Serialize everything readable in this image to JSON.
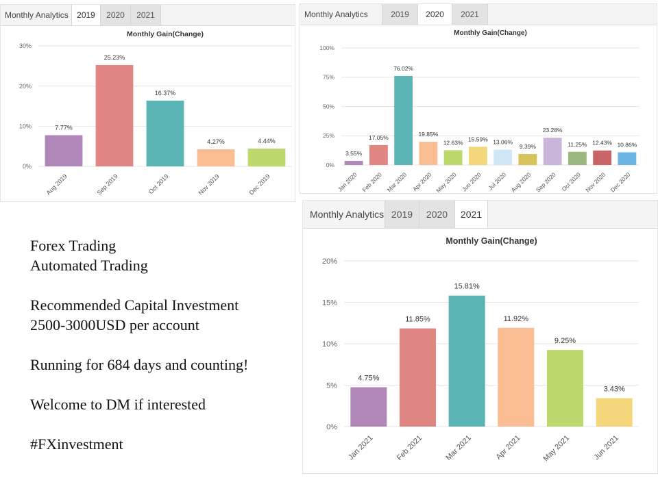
{
  "panels": [
    {
      "id": "p2019",
      "tabs": {
        "title": "Monthly Analytics",
        "years": [
          "2019",
          "2020",
          "2021"
        ],
        "active": "2019"
      },
      "chart_data": {
        "type": "bar",
        "title": "Monthly Gain(Change)",
        "categories": [
          "Aug 2019",
          "Sep 2019",
          "Oct 2019",
          "Nov 2019",
          "Dec 2019"
        ],
        "values": [
          7.77,
          25.23,
          16.37,
          4.27,
          4.44
        ],
        "value_labels": [
          "7.77%",
          "25.23%",
          "16.37%",
          "4.27%",
          "4.44%"
        ],
        "colors": [
          "#b186b8",
          "#e08682",
          "#5ab5b4",
          "#fbbd94",
          "#bdd96d"
        ],
        "yticks": [
          0,
          10,
          20,
          30
        ],
        "ytick_labels": [
          "0%",
          "10%",
          "20%",
          "30%"
        ],
        "ylim": [
          0,
          30
        ],
        "grid": true,
        "xlabel": "",
        "ylabel": ""
      }
    },
    {
      "id": "p2020",
      "tabs": {
        "title": "Monthly Analytics",
        "years": [
          "2019",
          "2020",
          "2021"
        ],
        "active": "2020"
      },
      "chart_data": {
        "type": "bar",
        "title": "Monthly Gain(Change)",
        "categories": [
          "Jan 2020",
          "Feb 2020",
          "Mar 2020",
          "Apr 2020",
          "May 2020",
          "Jun 2020",
          "Jul 2020",
          "Aug 2020",
          "Sep 2020",
          "Oct 2020",
          "Nov 2020",
          "Dec 2020"
        ],
        "values": [
          3.55,
          17.05,
          76.02,
          19.85,
          12.63,
          15.59,
          13.06,
          9.39,
          23.28,
          11.25,
          12.43,
          10.86
        ],
        "value_labels": [
          "3.55%",
          "17.05%",
          "76.02%",
          "19.85%",
          "12.63%",
          "15.59%",
          "13.06%",
          "9.39%",
          "23.28%",
          "11.25%",
          "12.43%",
          "10.86%"
        ],
        "colors": [
          "#b186b8",
          "#e08682",
          "#5ab5b4",
          "#fbbd94",
          "#bdd96d",
          "#f4d77a",
          "#cfe6f6",
          "#d6c35a",
          "#c8b5d9",
          "#9ab77f",
          "#c96567",
          "#6ab5e2"
        ],
        "yticks": [
          0,
          25,
          50,
          75,
          100
        ],
        "ytick_labels": [
          "0%",
          "25%",
          "50%",
          "75%",
          "100%"
        ],
        "ylim": [
          0,
          100
        ],
        "grid": true,
        "xlabel": "",
        "ylabel": ""
      }
    },
    {
      "id": "p2021",
      "tabs": {
        "title": "Monthly Analytics",
        "years": [
          "2019",
          "2020",
          "2021"
        ],
        "active": "2021"
      },
      "chart_data": {
        "type": "bar",
        "title": "Monthly Gain(Change)",
        "categories": [
          "Jan 2021",
          "Feb 2021",
          "Mar 2021",
          "Apr 2021",
          "May 2021",
          "Jun 2021"
        ],
        "values": [
          4.75,
          11.85,
          15.81,
          11.92,
          9.25,
          3.43
        ],
        "value_labels": [
          "4.75%",
          "11.85%",
          "15.81%",
          "11.92%",
          "9.25%",
          "3.43%"
        ],
        "colors": [
          "#b186b8",
          "#e08682",
          "#5ab5b4",
          "#fbbd94",
          "#bdd96d",
          "#f4d77a"
        ],
        "yticks": [
          0,
          5,
          10,
          15,
          20
        ],
        "ytick_labels": [
          "0%",
          "5%",
          "10%",
          "15%",
          "20%"
        ],
        "ylim": [
          0,
          20
        ],
        "grid": true,
        "xlabel": "",
        "ylabel": ""
      }
    }
  ],
  "promo": {
    "line1": "Forex Trading",
    "line2": "Automated Trading",
    "line3": "Recommended Capital Investment",
    "line4": "2500-3000USD per account",
    "line5": "Running for 684 days and counting!",
    "line6": "Welcome to DM if interested",
    "line7": "#FXinvestment"
  }
}
